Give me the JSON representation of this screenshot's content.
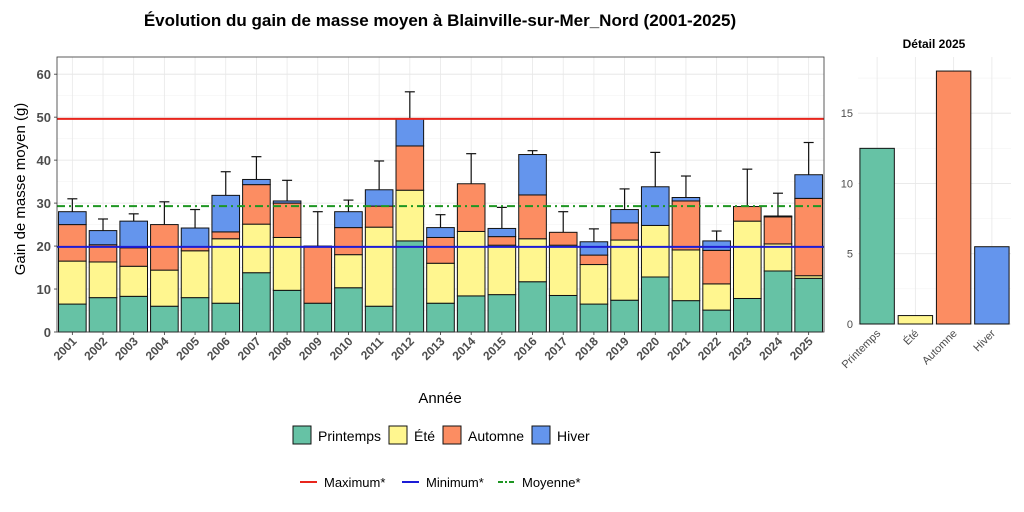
{
  "chart_data": [
    {
      "type": "bar",
      "stacked": true,
      "title": "Évolution du gain de masse moyen à Blainville-sur-Mer_Nord (2001-2025)",
      "xlabel": "Année",
      "ylabel": "Gain de masse moyen (g)",
      "ylim": [
        0,
        64
      ],
      "yticks": [
        0,
        10,
        20,
        30,
        40,
        50,
        60
      ],
      "grid": true,
      "categories": [
        "2001",
        "2002",
        "2003",
        "2004",
        "2005",
        "2006",
        "2007",
        "2008",
        "2009",
        "2010",
        "2011",
        "2012",
        "2013",
        "2014",
        "2015",
        "2016",
        "2017",
        "2018",
        "2019",
        "2020",
        "2021",
        "2022",
        "2023",
        "2024",
        "2025"
      ],
      "series": [
        {
          "name": "Printemps",
          "color": "#66C2A5",
          "values": [
            6.5,
            8.0,
            8.3,
            6.0,
            8.0,
            6.7,
            13.8,
            9.7,
            6.7,
            10.3,
            6.0,
            21.2,
            6.7,
            8.4,
            8.7,
            11.7,
            8.5,
            6.5,
            7.4,
            12.8,
            7.3,
            5.1,
            7.8,
            14.2,
            12.5
          ]
        },
        {
          "name": "Été",
          "color": "#FFF68F",
          "values": [
            10.0,
            8.3,
            7.0,
            8.4,
            10.9,
            15.0,
            11.3,
            12.3,
            0,
            7.7,
            18.4,
            11.8,
            9.3,
            15.0,
            11.5,
            10.0,
            11.7,
            9.2,
            14.0,
            12.0,
            11.8,
            6.1,
            18.0,
            6.3,
            0.6
          ]
        },
        {
          "name": "Automne",
          "color": "#FC8D62",
          "values": [
            8.5,
            4.0,
            4.3,
            10.6,
            1.0,
            1.6,
            9.2,
            8.0,
            13.3,
            6.3,
            4.9,
            10.3,
            6.0,
            11.1,
            2.0,
            10.2,
            3.0,
            2.2,
            4.0,
            0,
            11.4,
            7.8,
            3.4,
            6.3,
            18.0
          ]
        },
        {
          "name": "Hiver",
          "color": "#6495ED",
          "values": [
            3.0,
            3.3,
            6.2,
            0,
            4.3,
            8.5,
            1.2,
            0.5,
            0,
            3.7,
            3.8,
            6.3,
            2.3,
            0,
            1.9,
            9.4,
            0,
            3.1,
            3.1,
            9.0,
            0.8,
            2.2,
            0,
            0.2,
            5.5
          ]
        }
      ],
      "error_upper": [
        31.0,
        26.3,
        27.5,
        30.3,
        28.5,
        37.3,
        40.8,
        35.3,
        28.0,
        30.7,
        39.8,
        55.9,
        27.3,
        41.5,
        29.0,
        42.2,
        28.0,
        24.0,
        33.3,
        41.8,
        36.3,
        23.5,
        37.9,
        32.3,
        44.1
      ],
      "reference_lines": [
        {
          "name": "Maximum*",
          "value": 49.6,
          "color": "#E8251C",
          "style": "solid"
        },
        {
          "name": "Minimum*",
          "value": 19.8,
          "color": "#1C1CD6",
          "style": "solid"
        },
        {
          "name": "Moyenne*",
          "value": 29.3,
          "color": "#1E9622",
          "style": "dotdash"
        }
      ],
      "legend": {
        "position": "bottom"
      }
    },
    {
      "type": "bar",
      "title": "Détail 2025",
      "categories": [
        "Printemps",
        "Été",
        "Automne",
        "Hiver"
      ],
      "values": [
        12.5,
        0.6,
        18.0,
        5.5
      ],
      "colors": [
        "#66C2A5",
        "#FFF68F",
        "#FC8D62",
        "#6495ED"
      ],
      "ylim": [
        0,
        19
      ],
      "yticks": [
        0,
        5,
        10,
        15
      ],
      "grid": true
    }
  ]
}
